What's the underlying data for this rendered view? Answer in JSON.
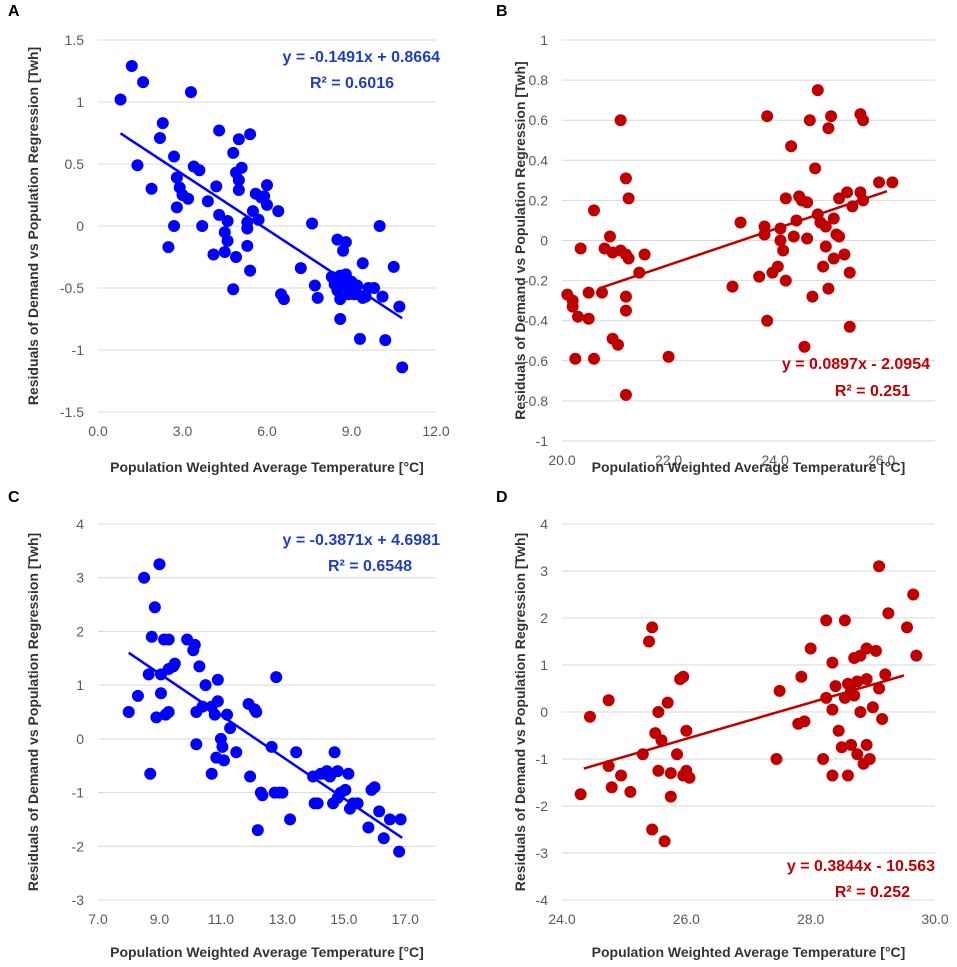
{
  "chart_data": [
    {
      "panel": "A",
      "type": "scatter",
      "xlabel": "Population Weighted Average Temperature [°C]",
      "ylabel": "Residuals of Demand vs Population Regression [Twh]",
      "xlim": [
        0,
        12
      ],
      "ylim": [
        -1.5,
        1.5
      ],
      "x_ticks": [
        "0.0",
        "3.0",
        "6.0",
        "9.0",
        "12.0"
      ],
      "y_ticks": [
        "-1.5",
        "-1",
        "-0.5",
        "0",
        "0.5",
        "1",
        "1.5"
      ],
      "marker_color": "#0000ff",
      "trendline": {
        "slope": -0.1491,
        "intercept": 0.8664,
        "x_range": [
          0.8,
          10.8
        ]
      },
      "equation": "y = -0.1491x + 0.8664",
      "r_squared": "R² = 0.6016",
      "eq_color": "#1f3fbf",
      "points": [
        [
          0.8,
          1.02
        ],
        [
          1.2,
          1.29
        ],
        [
          1.6,
          1.16
        ],
        [
          1.4,
          0.49
        ],
        [
          1.9,
          0.3
        ],
        [
          2.3,
          0.83
        ],
        [
          2.2,
          0.71
        ],
        [
          2.5,
          -0.17
        ],
        [
          2.7,
          0.56
        ],
        [
          3.3,
          1.08
        ],
        [
          2.8,
          0.39
        ],
        [
          2.9,
          0.31
        ],
        [
          3.0,
          0.25
        ],
        [
          2.7,
          0.0
        ],
        [
          2.8,
          0.15
        ],
        [
          3.2,
          0.22
        ],
        [
          3.4,
          0.48
        ],
        [
          3.6,
          0.45
        ],
        [
          3.7,
          0.0
        ],
        [
          3.9,
          0.2
        ],
        [
          4.2,
          0.32
        ],
        [
          4.3,
          0.77
        ],
        [
          4.3,
          0.09
        ],
        [
          4.5,
          -0.05
        ],
        [
          4.6,
          -0.12
        ],
        [
          4.5,
          -0.21
        ],
        [
          4.1,
          -0.23
        ],
        [
          4.6,
          0.04
        ],
        [
          4.8,
          0.59
        ],
        [
          4.9,
          0.43
        ],
        [
          5.0,
          0.37
        ],
        [
          5.0,
          0.7
        ],
        [
          5.1,
          0.47
        ],
        [
          5.4,
          0.74
        ],
        [
          5.0,
          0.29
        ],
        [
          4.8,
          -0.51
        ],
        [
          4.9,
          -0.25
        ],
        [
          5.3,
          -0.02
        ],
        [
          5.3,
          0.03
        ],
        [
          5.3,
          -0.16
        ],
        [
          5.4,
          -0.36
        ],
        [
          5.5,
          0.12
        ],
        [
          5.6,
          0.26
        ],
        [
          5.8,
          0.23
        ],
        [
          5.7,
          0.05
        ],
        [
          6.0,
          0.33
        ],
        [
          5.9,
          0.24
        ],
        [
          6.0,
          0.17
        ],
        [
          6.4,
          0.12
        ],
        [
          6.5,
          -0.55
        ],
        [
          6.6,
          -0.59
        ],
        [
          7.6,
          0.02
        ],
        [
          7.2,
          -0.34
        ],
        [
          7.8,
          -0.58
        ],
        [
          7.7,
          -0.48
        ],
        [
          8.3,
          -0.41
        ],
        [
          8.4,
          -0.47
        ],
        [
          8.5,
          -0.52
        ],
        [
          8.5,
          -0.11
        ],
        [
          8.6,
          -0.4
        ],
        [
          8.6,
          -0.59
        ],
        [
          8.8,
          -0.39
        ],
        [
          8.7,
          -0.46
        ],
        [
          8.8,
          -0.13
        ],
        [
          8.9,
          -0.5
        ],
        [
          9.0,
          -0.45
        ],
        [
          9.1,
          -0.55
        ],
        [
          9.4,
          -0.58
        ],
        [
          9.4,
          -0.3
        ],
        [
          9.5,
          -0.57
        ],
        [
          9.6,
          -0.5
        ],
        [
          8.7,
          -0.2
        ],
        [
          8.6,
          -0.75
        ],
        [
          8.9,
          -0.55
        ],
        [
          9.3,
          -0.91
        ],
        [
          10.0,
          0.0
        ],
        [
          10.1,
          -0.57
        ],
        [
          10.2,
          -0.92
        ],
        [
          10.5,
          -0.33
        ],
        [
          10.7,
          -0.65
        ],
        [
          10.8,
          -1.14
        ],
        [
          9.8,
          -0.5
        ],
        [
          9.2,
          -0.48
        ]
      ]
    },
    {
      "panel": "B",
      "type": "scatter",
      "xlabel": "Population Weighted Average Temperature [°C]",
      "ylabel": "Residuals of Demand vs Population Regression [Twh]",
      "xlim": [
        20,
        27
      ],
      "ylim": [
        -1,
        1
      ],
      "x_ticks": [
        "20.0",
        "22.0",
        "24.0",
        "26.0"
      ],
      "y_ticks": [
        "-1",
        "-0.8",
        "-0.6",
        "-0.4",
        "-0.2",
        "0",
        "0.2",
        "0.4",
        "0.6",
        "0.8",
        "1"
      ],
      "marker_color": "#c00000",
      "trendline": {
        "slope": 0.0897,
        "intercept": -2.0954,
        "x_range": [
          20.7,
          26.1
        ]
      },
      "equation": "y = 0.0897x - 2.0954",
      "r_squared": "R² = 0.251",
      "eq_color": "#c00000",
      "points": [
        [
          20.1,
          -0.27
        ],
        [
          20.2,
          -0.3
        ],
        [
          20.2,
          -0.33
        ],
        [
          20.3,
          -0.38
        ],
        [
          20.25,
          -0.59
        ],
        [
          20.35,
          -0.04
        ],
        [
          20.5,
          -0.39
        ],
        [
          20.5,
          -0.26
        ],
        [
          20.6,
          -0.59
        ],
        [
          20.6,
          0.15
        ],
        [
          20.75,
          -0.26
        ],
        [
          20.8,
          -0.04
        ],
        [
          20.9,
          0.02
        ],
        [
          20.95,
          -0.49
        ],
        [
          21.05,
          -0.52
        ],
        [
          20.95,
          -0.06
        ],
        [
          21.1,
          0.6
        ],
        [
          21.1,
          -0.05
        ],
        [
          21.2,
          0.31
        ],
        [
          21.25,
          0.21
        ],
        [
          21.2,
          -0.07
        ],
        [
          21.25,
          -0.09
        ],
        [
          21.2,
          -0.28
        ],
        [
          21.2,
          -0.35
        ],
        [
          21.2,
          -0.77
        ],
        [
          21.45,
          -0.16
        ],
        [
          21.55,
          -0.07
        ],
        [
          22.0,
          -0.58
        ],
        [
          23.2,
          -0.23
        ],
        [
          23.35,
          0.09
        ],
        [
          23.7,
          -0.18
        ],
        [
          23.8,
          0.07
        ],
        [
          23.8,
          0.03
        ],
        [
          23.85,
          0.62
        ],
        [
          23.85,
          -0.4
        ],
        [
          23.95,
          -0.16
        ],
        [
          24.05,
          -0.13
        ],
        [
          24.1,
          0.0
        ],
        [
          24.1,
          0.06
        ],
        [
          24.15,
          -0.05
        ],
        [
          24.2,
          0.21
        ],
        [
          24.2,
          -0.2
        ],
        [
          24.3,
          0.47
        ],
        [
          24.35,
          0.02
        ],
        [
          24.4,
          0.1
        ],
        [
          24.45,
          0.22
        ],
        [
          24.5,
          0.2
        ],
        [
          24.55,
          -0.53
        ],
        [
          24.6,
          0.19
        ],
        [
          24.6,
          0.01
        ],
        [
          24.65,
          0.6
        ],
        [
          24.7,
          -0.28
        ],
        [
          24.75,
          0.36
        ],
        [
          24.8,
          0.75
        ],
        [
          24.8,
          0.13
        ],
        [
          24.85,
          0.09
        ],
        [
          24.9,
          -0.13
        ],
        [
          24.95,
          -0.03
        ],
        [
          24.95,
          0.07
        ],
        [
          25.0,
          -0.24
        ],
        [
          25.0,
          0.56
        ],
        [
          25.05,
          0.62
        ],
        [
          25.1,
          0.11
        ],
        [
          25.1,
          -0.09
        ],
        [
          25.15,
          0.03
        ],
        [
          25.2,
          0.02
        ],
        [
          25.2,
          0.21
        ],
        [
          25.3,
          -0.07
        ],
        [
          25.35,
          0.24
        ],
        [
          25.4,
          -0.43
        ],
        [
          25.4,
          -0.16
        ],
        [
          25.45,
          0.17
        ],
        [
          25.6,
          0.24
        ],
        [
          25.65,
          0.2
        ],
        [
          25.6,
          0.63
        ],
        [
          25.65,
          0.6
        ],
        [
          25.95,
          0.29
        ],
        [
          26.2,
          0.29
        ]
      ]
    },
    {
      "panel": "C",
      "type": "scatter",
      "xlabel": "Population Weighted Average Temperature [°C]",
      "ylabel": "Residuals of Demand vs Population Regression [Twh]",
      "xlim": [
        7,
        18
      ],
      "ylim": [
        -3,
        4
      ],
      "x_ticks": [
        "7.0",
        "9.0",
        "11.0",
        "13.0",
        "15.0",
        "17.0"
      ],
      "y_ticks": [
        "-3",
        "-2",
        "-1",
        "0",
        "1",
        "2",
        "3",
        "4"
      ],
      "marker_color": "#0000ff",
      "trendline": {
        "slope": -0.3871,
        "intercept": 4.6981,
        "x_range": [
          8.0,
          16.9
        ]
      },
      "equation": "y = -0.3871x + 4.6981",
      "r_squared": "R² = 0.6548",
      "eq_color": "#1f3fbf",
      "points": [
        [
          8.0,
          0.5
        ],
        [
          8.3,
          0.8
        ],
        [
          8.5,
          3.0
        ],
        [
          8.65,
          1.2
        ],
        [
          8.7,
          -0.65
        ],
        [
          8.75,
          1.9
        ],
        [
          8.85,
          2.45
        ],
        [
          8.9,
          0.4
        ],
        [
          9.0,
          3.25
        ],
        [
          9.05,
          0.85
        ],
        [
          9.05,
          1.2
        ],
        [
          9.15,
          1.85
        ],
        [
          9.2,
          0.45
        ],
        [
          9.3,
          1.3
        ],
        [
          9.3,
          0.5
        ],
        [
          9.3,
          1.85
        ],
        [
          9.45,
          1.35
        ],
        [
          9.5,
          1.4
        ],
        [
          9.9,
          1.85
        ],
        [
          10.1,
          1.65
        ],
        [
          10.15,
          1.75
        ],
        [
          10.2,
          0.5
        ],
        [
          10.2,
          -0.1
        ],
        [
          10.3,
          1.35
        ],
        [
          10.4,
          0.6
        ],
        [
          10.5,
          1.0
        ],
        [
          10.7,
          0.6
        ],
        [
          10.7,
          -0.65
        ],
        [
          10.8,
          0.45
        ],
        [
          10.85,
          -0.35
        ],
        [
          10.9,
          0.7
        ],
        [
          10.9,
          1.1
        ],
        [
          11.0,
          0.0
        ],
        [
          11.05,
          -0.15
        ],
        [
          11.1,
          -0.4
        ],
        [
          11.2,
          0.45
        ],
        [
          11.3,
          0.2
        ],
        [
          11.5,
          -0.25
        ],
        [
          11.9,
          0.65
        ],
        [
          11.95,
          -0.7
        ],
        [
          12.1,
          0.55
        ],
        [
          12.15,
          0.5
        ],
        [
          12.2,
          -1.7
        ],
        [
          12.3,
          -1.0
        ],
        [
          12.35,
          -1.05
        ],
        [
          12.65,
          -0.15
        ],
        [
          12.75,
          -1.0
        ],
        [
          12.8,
          1.15
        ],
        [
          12.9,
          -1.0
        ],
        [
          13.0,
          -1.0
        ],
        [
          13.25,
          -1.5
        ],
        [
          13.45,
          -0.25
        ],
        [
          14.0,
          -0.7
        ],
        [
          14.05,
          -1.2
        ],
        [
          14.15,
          -1.2
        ],
        [
          14.25,
          -0.65
        ],
        [
          14.4,
          -0.65
        ],
        [
          14.45,
          -0.6
        ],
        [
          14.55,
          -0.7
        ],
        [
          14.65,
          -1.2
        ],
        [
          14.7,
          -0.25
        ],
        [
          14.8,
          -0.6
        ],
        [
          14.8,
          -1.1
        ],
        [
          14.9,
          -1.0
        ],
        [
          15.05,
          -0.95
        ],
        [
          15.15,
          -0.65
        ],
        [
          15.2,
          -1.3
        ],
        [
          15.3,
          -1.2
        ],
        [
          15.45,
          -1.2
        ],
        [
          15.8,
          -1.65
        ],
        [
          15.9,
          -0.95
        ],
        [
          16.0,
          -0.9
        ],
        [
          16.15,
          -1.35
        ],
        [
          16.3,
          -1.85
        ],
        [
          16.5,
          -1.5
        ],
        [
          16.8,
          -2.1
        ],
        [
          16.85,
          -1.5
        ]
      ]
    },
    {
      "panel": "D",
      "type": "scatter",
      "xlabel": "Population Weighted Average Temperature [°C]",
      "ylabel": "Residuals of Demand vs Population Regression [Twh]",
      "xlim": [
        24,
        30
      ],
      "ylim": [
        -4,
        4
      ],
      "x_ticks": [
        "24.0",
        "26.0",
        "28.0",
        "30.0"
      ],
      "y_ticks": [
        "-4",
        "-3",
        "-2",
        "-1",
        "0",
        "1",
        "2",
        "3",
        "4"
      ],
      "marker_color": "#c00000",
      "trendline": {
        "slope": 0.3844,
        "intercept": -10.563,
        "x_range": [
          24.35,
          29.5
        ]
      },
      "equation": "y = 0.3844x - 10.563",
      "r_squared": "R² = 0.252",
      "eq_color": "#c00000",
      "points": [
        [
          24.3,
          -1.75
        ],
        [
          24.45,
          -0.1
        ],
        [
          24.75,
          -1.15
        ],
        [
          24.75,
          0.25
        ],
        [
          24.8,
          -1.6
        ],
        [
          24.95,
          -1.35
        ],
        [
          25.1,
          -1.7
        ],
        [
          25.3,
          -0.9
        ],
        [
          25.4,
          1.5
        ],
        [
          25.45,
          1.8
        ],
        [
          25.45,
          -2.5
        ],
        [
          25.5,
          -0.45
        ],
        [
          25.55,
          0.0
        ],
        [
          25.55,
          -1.25
        ],
        [
          25.6,
          -0.6
        ],
        [
          25.65,
          -2.75
        ],
        [
          25.7,
          0.2
        ],
        [
          25.75,
          -1.8
        ],
        [
          25.75,
          -1.3
        ],
        [
          25.85,
          -0.9
        ],
        [
          25.9,
          0.7
        ],
        [
          25.95,
          0.75
        ],
        [
          25.95,
          -1.35
        ],
        [
          26.0,
          -1.25
        ],
        [
          26.0,
          -0.4
        ],
        [
          26.05,
          -1.4
        ],
        [
          27.45,
          -1.0
        ],
        [
          27.5,
          0.45
        ],
        [
          27.8,
          -0.25
        ],
        [
          27.85,
          0.75
        ],
        [
          27.9,
          -0.2
        ],
        [
          28.0,
          1.35
        ],
        [
          28.2,
          -1.0
        ],
        [
          28.25,
          0.3
        ],
        [
          28.25,
          1.95
        ],
        [
          28.35,
          -1.35
        ],
        [
          28.35,
          1.05
        ],
        [
          28.35,
          0.05
        ],
        [
          28.4,
          0.55
        ],
        [
          28.45,
          -0.4
        ],
        [
          28.5,
          -0.75
        ],
        [
          28.55,
          1.95
        ],
        [
          28.55,
          0.3
        ],
        [
          28.6,
          0.6
        ],
        [
          28.6,
          -1.35
        ],
        [
          28.65,
          -0.7
        ],
        [
          28.65,
          0.45
        ],
        [
          28.7,
          1.15
        ],
        [
          28.7,
          0.35
        ],
        [
          28.75,
          -0.9
        ],
        [
          28.75,
          0.65
        ],
        [
          28.8,
          1.2
        ],
        [
          28.8,
          0.0
        ],
        [
          28.85,
          -1.1
        ],
        [
          28.9,
          1.35
        ],
        [
          28.9,
          0.7
        ],
        [
          28.9,
          -0.7
        ],
        [
          28.95,
          -1.0
        ],
        [
          29.0,
          0.1
        ],
        [
          29.05,
          1.3
        ],
        [
          29.1,
          3.1
        ],
        [
          29.1,
          0.5
        ],
        [
          29.15,
          -0.15
        ],
        [
          29.2,
          0.8
        ],
        [
          29.25,
          2.1
        ],
        [
          29.55,
          1.8
        ],
        [
          29.65,
          2.5
        ],
        [
          29.7,
          1.2
        ]
      ]
    }
  ]
}
